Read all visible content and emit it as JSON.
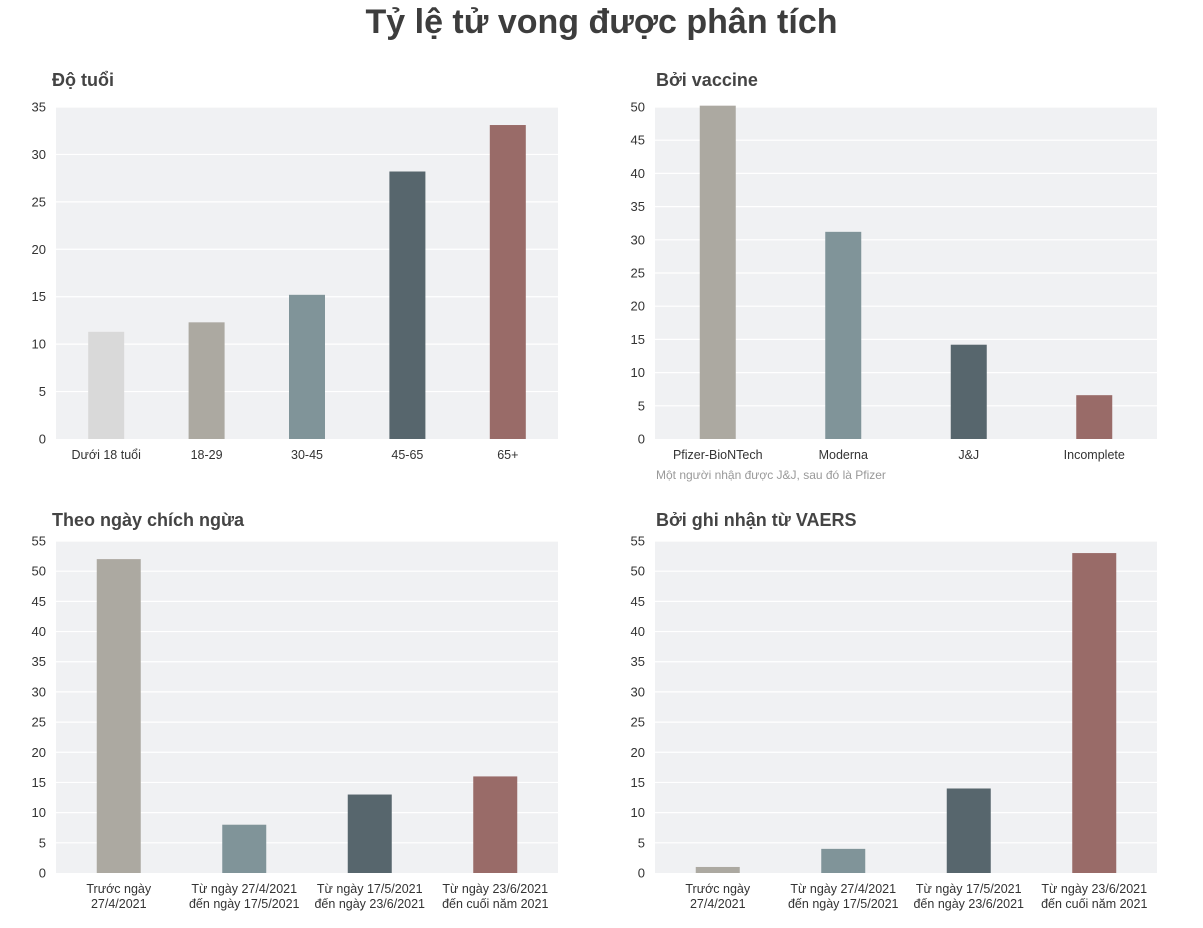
{
  "title": "Tỷ lệ tử vong được phân tích",
  "colors": {
    "plot_bg": "#f0f1f3",
    "grid": "#ffffff",
    "light_gray": "#d9d9d9",
    "gray": "#aca9a1",
    "blue_gray": "#809499",
    "slate": "#57666d",
    "rose": "#996b68"
  },
  "chart_data": [
    {
      "type": "bar",
      "title": "Độ tuổi",
      "categories": [
        "Dưới 18 tuổi",
        "18-29",
        "30-45",
        "45-65",
        "65+"
      ],
      "values": [
        11.3,
        12.3,
        15.2,
        28.2,
        33.1
      ],
      "bar_colors": [
        "#d9d9d9",
        "#aca9a1",
        "#809499",
        "#57666d",
        "#996b68"
      ],
      "ylim": [
        0,
        35
      ],
      "yticks": [
        0,
        5,
        10,
        15,
        20,
        25,
        30,
        35
      ],
      "grid": true,
      "note": ""
    },
    {
      "type": "bar",
      "title": "Bởi vaccine",
      "categories": [
        "Pfizer-BioNTech",
        "Moderna",
        "J&J",
        "Incomplete"
      ],
      "values": [
        50.2,
        31.2,
        14.2,
        6.6
      ],
      "bar_colors": [
        "#aca9a1",
        "#809499",
        "#57666d",
        "#996b68"
      ],
      "ylim": [
        0,
        50
      ],
      "yticks": [
        0,
        5,
        10,
        15,
        20,
        25,
        30,
        35,
        40,
        45,
        50
      ],
      "grid": true,
      "note": "Một người nhận được J&J, sau đó là Pfizer"
    },
    {
      "type": "bar",
      "title": "Theo ngày chích ngừa",
      "categories": [
        [
          "Trước ngày",
          "27/4/2021"
        ],
        [
          "Từ ngày 27/4/2021",
          "đến ngày 17/5/2021"
        ],
        [
          "Từ ngày 17/5/2021",
          "đến ngày 23/6/2021"
        ],
        [
          "Từ ngày 23/6/2021",
          "đến cuối năm 2021"
        ]
      ],
      "values": [
        52,
        8,
        13,
        16
      ],
      "bar_colors": [
        "#aca9a1",
        "#809499",
        "#57666d",
        "#996b68"
      ],
      "ylim": [
        0,
        55
      ],
      "yticks": [
        0,
        5,
        10,
        15,
        20,
        25,
        30,
        35,
        40,
        45,
        50,
        55
      ],
      "grid": true,
      "note": ""
    },
    {
      "type": "bar",
      "title": "Bởi ghi nhận từ VAERS",
      "categories": [
        [
          "Trước ngày",
          "27/4/2021"
        ],
        [
          "Từ ngày 27/4/2021",
          "đến ngày 17/5/2021"
        ],
        [
          "Từ ngày 17/5/2021",
          "đến ngày 23/6/2021"
        ],
        [
          "Từ ngày 23/6/2021",
          "đến cuối năm 2021"
        ]
      ],
      "values": [
        1,
        4,
        14,
        53
      ],
      "bar_colors": [
        "#aca9a1",
        "#809499",
        "#57666d",
        "#996b68"
      ],
      "ylim": [
        0,
        55
      ],
      "yticks": [
        0,
        5,
        10,
        15,
        20,
        25,
        30,
        35,
        40,
        45,
        50,
        55
      ],
      "grid": true,
      "note": ""
    }
  ]
}
